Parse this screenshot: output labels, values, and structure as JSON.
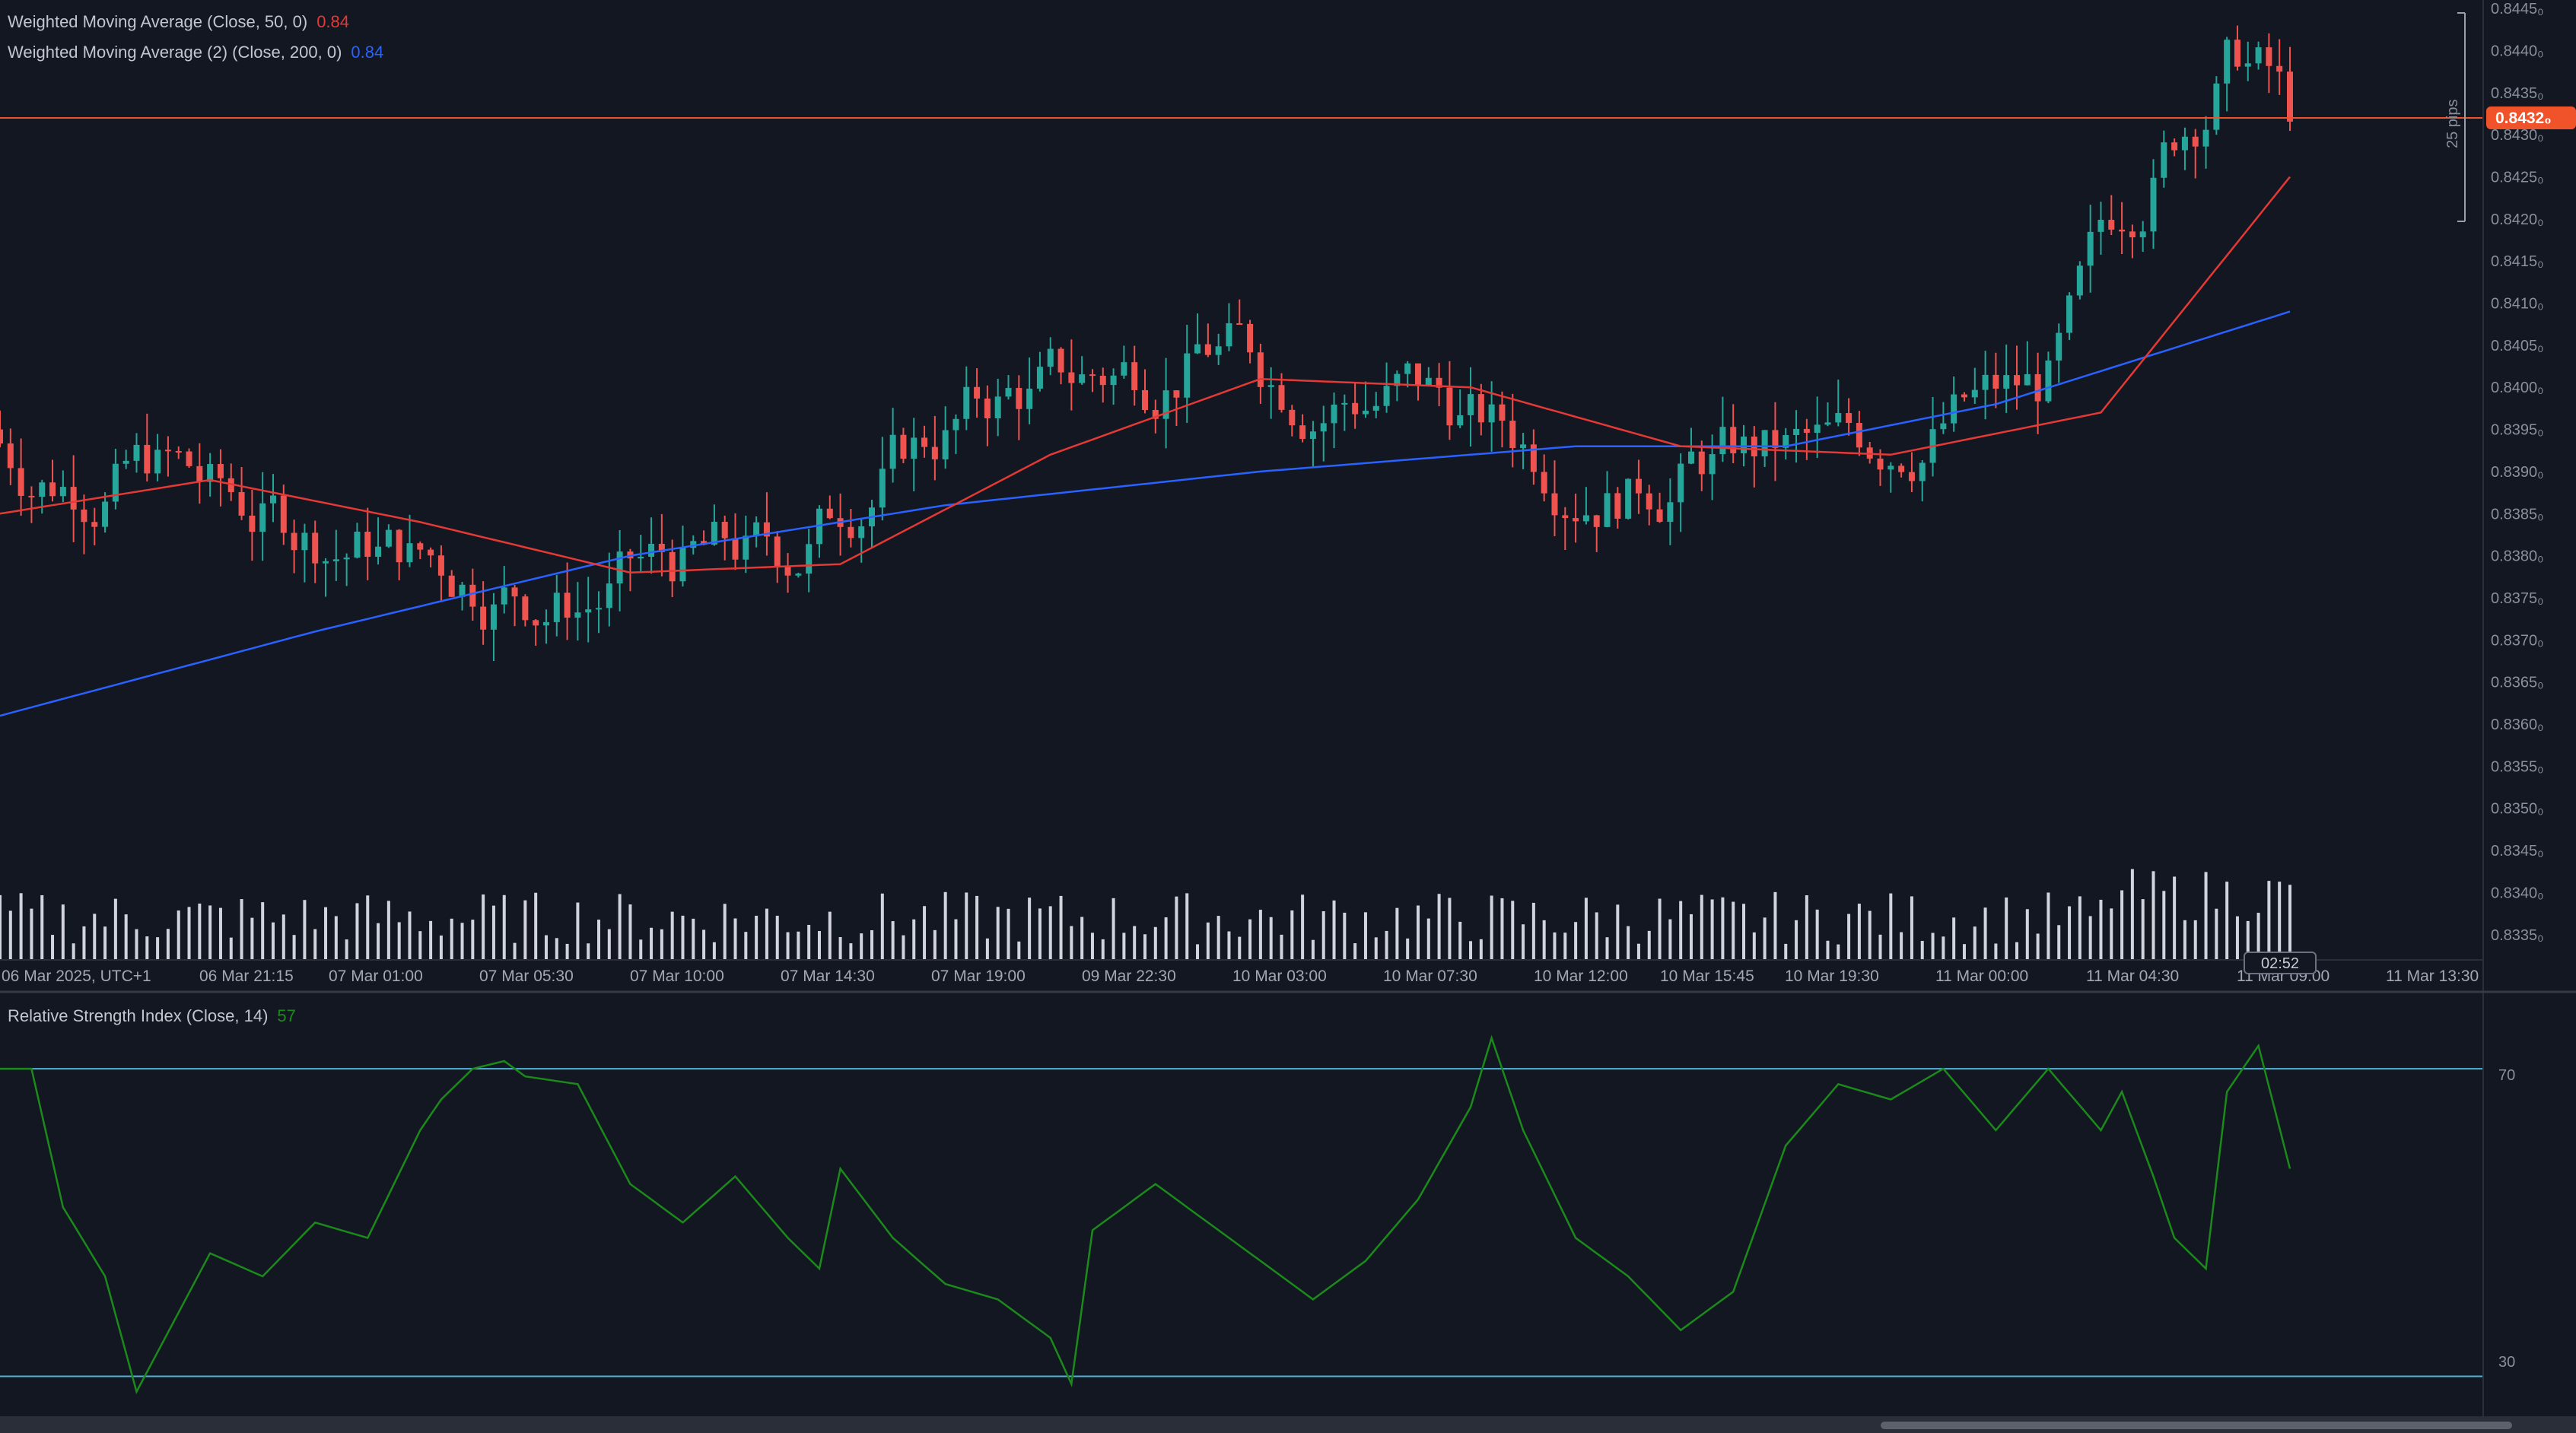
{
  "legend": {
    "wma50_label": "Weighted Moving Average (Close, 50, 0)",
    "wma50_value": "0.84",
    "wma200_label": "Weighted Moving Average (2) (Close, 200, 0)",
    "wma200_value": "0.84",
    "rsi_label": "Relative Strength Index (Close, 14)",
    "rsi_value": "57"
  },
  "colors": {
    "background": "#131722",
    "up": "#26a69a",
    "down": "#ef5350",
    "wma50": "#e53935",
    "wma200": "#2962ff",
    "rsi": "#1b8a1b",
    "current_price": "#f0522a",
    "grid_line": "#2a2e39"
  },
  "price_axis": {
    "ticks": [
      "0.8445₀",
      "0.8440₀",
      "0.8435₀",
      "0.8430₀",
      "0.8425₀",
      "0.8420₀",
      "0.8415₀",
      "0.8410₀",
      "0.8405₀",
      "0.8400₀",
      "0.8395₀",
      "0.8390₀",
      "0.8385₀",
      "0.8380₀",
      "0.8375₀",
      "0.8370₀",
      "0.8365₀",
      "0.8360₀",
      "0.8355₀",
      "0.8350₀",
      "0.8345₀",
      "0.8340₀",
      "0.8335₀"
    ],
    "current_price_label": "0.8432₀",
    "range_label": "25 pips"
  },
  "time_axis": {
    "labels": [
      "06 Mar 2025, UTC+1",
      "06 Mar 21:15",
      "07 Mar 01:00",
      "07 Mar 05:30",
      "07 Mar 10:00",
      "07 Mar 14:30",
      "07 Mar 19:00",
      "09 Mar 22:30",
      "10 Mar 03:00",
      "10 Mar 07:30",
      "10 Mar 12:00",
      "10 Mar 15:45",
      "10 Mar 19:30",
      "11 Mar 00:00",
      "11 Mar 04:30",
      "11 Mar 09:00",
      "11 Mar 13:30"
    ],
    "countdown": "02:52"
  },
  "rsi_axis": {
    "upper_label": "70",
    "lower_label": "30",
    "upper": 70,
    "lower": 30
  },
  "chart_data": [
    {
      "type": "line",
      "title": "",
      "series": [
        {
          "name": "Weighted Moving Average (Close, 50, 0)",
          "x": [
            0,
            20,
            40,
            60,
            80,
            100,
            120,
            140,
            160,
            180,
            200,
            218
          ],
          "values": [
            0.8385,
            0.8389,
            0.8384,
            0.8378,
            0.8379,
            0.8392,
            0.8401,
            0.84,
            0.8393,
            0.8392,
            0.8397,
            0.8425
          ]
        },
        {
          "name": "Weighted Moving Average (2) (Close, 200, 0)",
          "x": [
            0,
            30,
            60,
            90,
            120,
            150,
            170,
            190,
            218
          ],
          "values": [
            0.8361,
            0.8371,
            0.838,
            0.8386,
            0.839,
            0.8393,
            0.8393,
            0.8398,
            0.8409
          ]
        }
      ],
      "ylim": [
        0.8332,
        0.8446
      ],
      "current_price": 0.8432
    },
    {
      "type": "line",
      "title": "",
      "series": [
        {
          "name": "Relative Strength Index (Close, 14)",
          "x": [
            0,
            3,
            6,
            10,
            13,
            20,
            25,
            30,
            35,
            40,
            42,
            45,
            48,
            50,
            55,
            60,
            65,
            70,
            75,
            78,
            80,
            85,
            90,
            95,
            100,
            102,
            104,
            110,
            115,
            120,
            125,
            130,
            135,
            140,
            142,
            145,
            150,
            155,
            160,
            165,
            170,
            175,
            180,
            185,
            190,
            195,
            200,
            202,
            205,
            207,
            210,
            212,
            215,
            218
          ],
          "values": [
            70,
            70,
            52,
            43,
            28,
            46,
            43,
            50,
            48,
            62,
            66,
            70,
            71,
            69,
            68,
            55,
            50,
            56,
            48,
            44,
            57,
            48,
            42,
            40,
            35,
            29,
            49,
            55,
            50,
            45,
            40,
            45,
            53,
            65,
            74,
            62,
            48,
            43,
            36,
            41,
            60,
            68,
            66,
            70,
            62,
            70,
            62,
            67,
            56,
            48,
            44,
            67,
            73,
            57
          ]
        }
      ],
      "ylim": [
        25,
        80
      ],
      "reference_lines": [
        70,
        30
      ]
    }
  ]
}
